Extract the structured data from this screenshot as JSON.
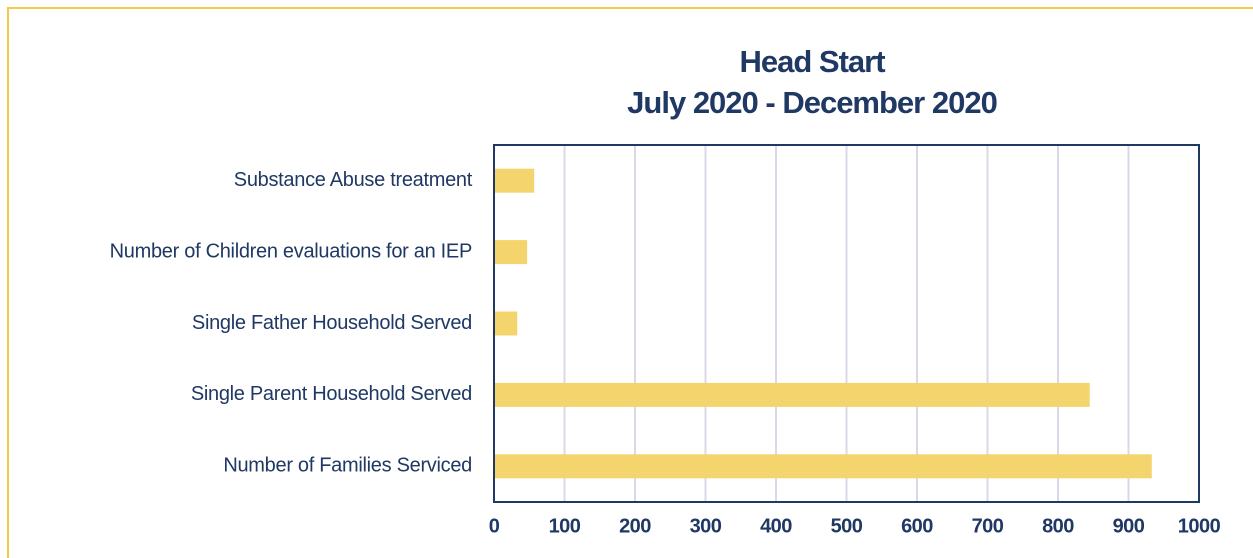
{
  "chart_data": {
    "type": "hbar",
    "title": "Head Start",
    "subtitle": "July 2020 - December 2020",
    "categories": [
      "Substance Abuse treatment",
      "Number of Children evaluations for an IEP",
      "Single Father Household Served",
      "Single Parent Household Served",
      "Number of Families Serviced"
    ],
    "values": [
      57,
      47,
      33,
      845,
      933
    ],
    "color": "#f4d46c",
    "xlim": [
      0,
      1000
    ],
    "xticks": [
      0,
      100,
      200,
      300,
      400,
      500,
      600,
      700,
      800,
      900,
      1000
    ],
    "grid": true
  }
}
